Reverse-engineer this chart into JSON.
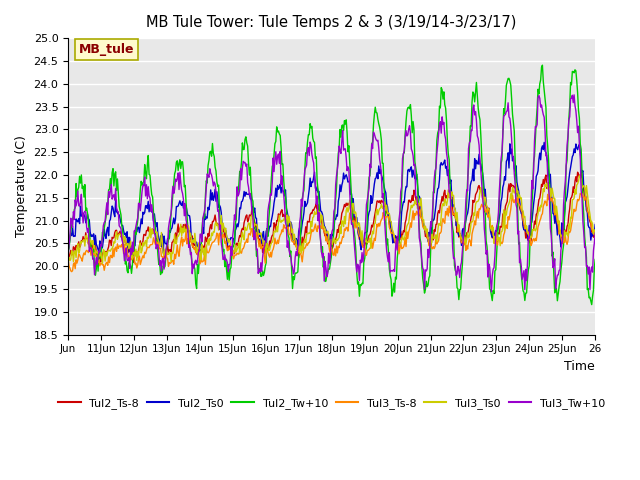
{
  "title": "MB Tule Tower: Tule Temps 2 & 3 (3/19/14-3/23/17)",
  "xlabel": "Time",
  "ylabel": "Temperature (C)",
  "ylim": [
    18.5,
    25.0
  ],
  "background_color": "#ffffff",
  "plot_bg_color": "#e8e8e8",
  "grid_color": "#ffffff",
  "legend_label": "MB_tule",
  "legend_text_color": "#8b0000",
  "legend_box_color": "#fffacd",
  "series": {
    "Tul2_Ts-8": {
      "color": "#cc0000"
    },
    "Tul2_Ts0": {
      "color": "#0000cc"
    },
    "Tul2_Tw+10": {
      "color": "#00cc00"
    },
    "Tul3_Ts-8": {
      "color": "#ff8800"
    },
    "Tul3_Ts0": {
      "color": "#cccc00"
    },
    "Tul3_Tw+10": {
      "color": "#9900cc"
    }
  },
  "xtick_labels": [
    "Jun",
    "11Jun",
    "12Jun",
    "13Jun",
    "14Jun",
    "15Jun",
    "16Jun",
    "17Jun",
    "18Jun",
    "19Jun",
    "20Jun",
    "21Jun",
    "22Jun",
    "23Jun",
    "24Jun",
    "25Jun",
    "26"
  ],
  "ytick_labels": [
    18.5,
    19.0,
    19.5,
    20.0,
    20.5,
    21.0,
    21.5,
    22.0,
    22.5,
    23.0,
    23.5,
    24.0,
    24.5,
    25.0
  ],
  "n_points": 600
}
